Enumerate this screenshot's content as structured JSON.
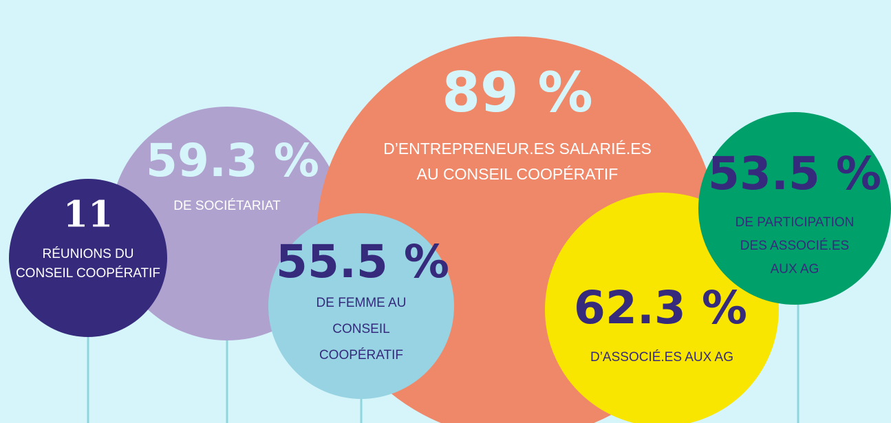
{
  "bubbles": [
    {
      "value": "11",
      "lines": [
        "RÉUNIONS DU",
        "CONSEIL COOPÉRATIF"
      ]
    },
    {
      "value": "59.3 %",
      "lines": [
        "DE SOCIÉTARIAT"
      ]
    },
    {
      "value": "89 %",
      "lines": [
        "D’ENTREPRENEUR.ES SALARIÉ.ES",
        "AU CONSEIL COOPÉRATIF"
      ]
    },
    {
      "value": "55.5 %",
      "lines": [
        "DE FEMME AU",
        "CONSEIL",
        "COOPÉRATIF"
      ]
    },
    {
      "value": "62.3 %",
      "lines": [
        "D’ASSOCIÉ.ES AUX AG"
      ]
    },
    {
      "value": "53.5 %",
      "lines": [
        "DE PARTICIPATION",
        "DES ASSOCIÉ.ES",
        "AUX AG"
      ]
    }
  ]
}
